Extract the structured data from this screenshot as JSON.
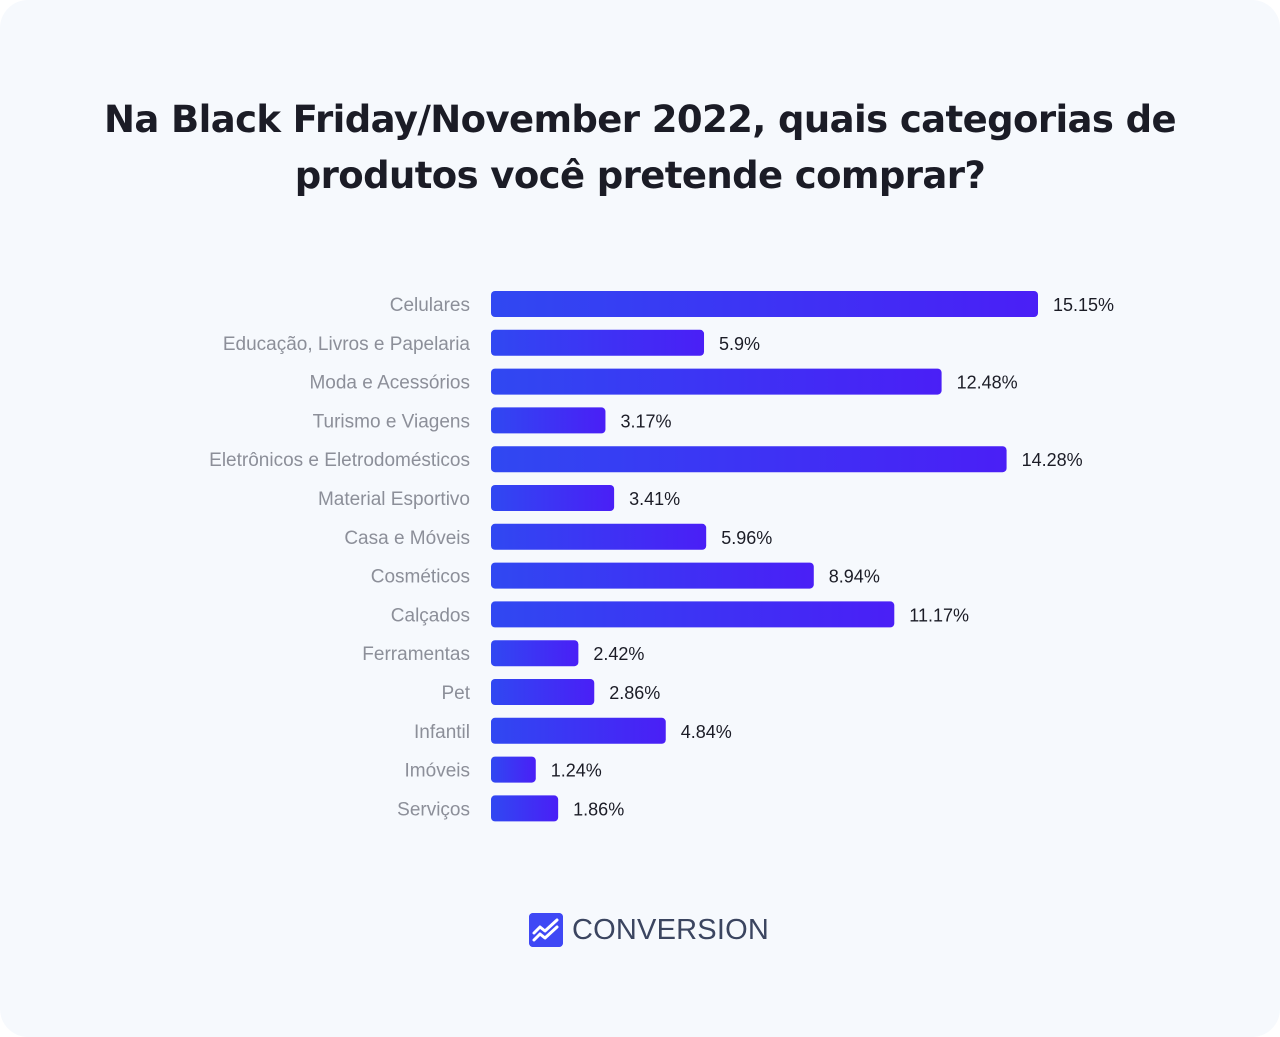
{
  "title_line1": "Na Black Friday/November 2022, quais categorias de",
  "title_line2": "produtos você pretende comprar?",
  "brand": {
    "name": "CONVERSION",
    "icon": "trend-chart-icon",
    "color": "#3f48f5"
  },
  "colors": {
    "bar_start": "#3048f2",
    "bar_end": "#4a1ff6",
    "category_text": "#8c8f99",
    "value_text": "#1b1c26"
  },
  "chart_data": {
    "type": "bar",
    "orientation": "horizontal",
    "categories": [
      "Celulares",
      "Educação, Livros e Papelaria",
      "Moda e Acessórios",
      "Turismo e Viagens",
      "Eletrônicos e Eletrodomésticos",
      "Material Esportivo",
      "Casa e Móveis",
      "Cosméticos",
      "Calçados",
      "Ferramentas",
      "Pet",
      "Infantil",
      "Imóveis",
      "Serviços"
    ],
    "values": [
      15.15,
      5.9,
      12.48,
      3.17,
      14.28,
      3.41,
      5.96,
      8.94,
      11.17,
      2.42,
      2.86,
      4.84,
      1.24,
      1.86
    ],
    "value_labels": [
      "15.15%",
      "5.9%",
      "12.48%",
      "3.17%",
      "14.28%",
      "3.41%",
      "5.96%",
      "8.94%",
      "11.17%",
      "2.42%",
      "2.86%",
      "4.84%",
      "1.24%",
      "1.86%"
    ],
    "title": "Na Black Friday/November 2022, quais categorias de produtos você pretende comprar?",
    "xlabel": "",
    "ylabel": "",
    "grid": false,
    "legend": "none"
  }
}
